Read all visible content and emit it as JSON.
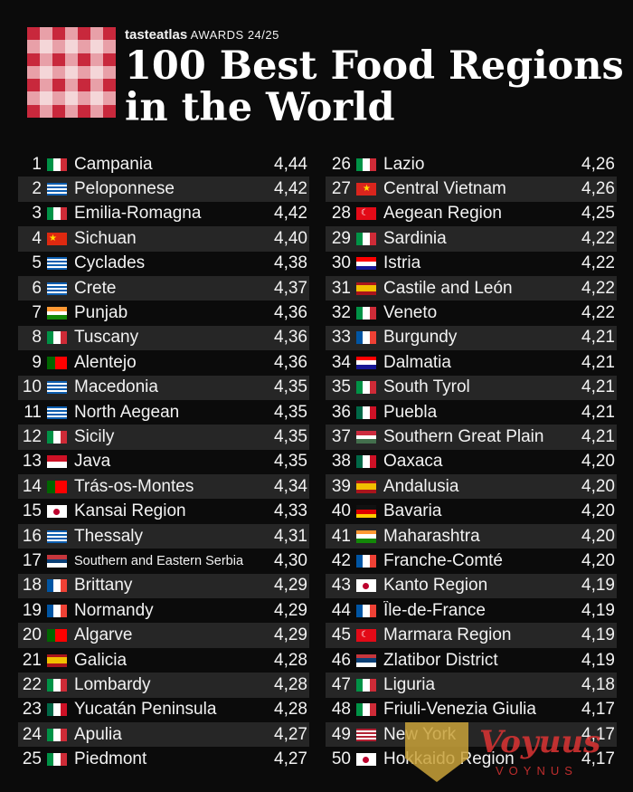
{
  "header": {
    "brand": "tasteatlas",
    "awards": "AWARDS 24/25",
    "title_line1": "100 Best Food Regions",
    "title_line2": "in the World"
  },
  "colors": {
    "checker_red": "#c8283c",
    "checker_pink": "#e8a0a8",
    "checker_light": "#f4d6d8",
    "row_alt": "#262626",
    "background": "#0b0b0b"
  },
  "left": [
    {
      "rank": "1",
      "flag": "italy",
      "name": "Campania",
      "score": "4,44"
    },
    {
      "rank": "2",
      "flag": "greece",
      "name": "Peloponnese",
      "score": "4,42"
    },
    {
      "rank": "3",
      "flag": "italy",
      "name": "Emilia-Romagna",
      "score": "4,42"
    },
    {
      "rank": "4",
      "flag": "china",
      "name": "Sichuan",
      "score": "4,40"
    },
    {
      "rank": "5",
      "flag": "greece",
      "name": "Cyclades",
      "score": "4,38"
    },
    {
      "rank": "6",
      "flag": "greece",
      "name": "Crete",
      "score": "4,37"
    },
    {
      "rank": "7",
      "flag": "india",
      "name": "Punjab",
      "score": "4,36"
    },
    {
      "rank": "8",
      "flag": "italy",
      "name": "Tuscany",
      "score": "4,36"
    },
    {
      "rank": "9",
      "flag": "portugal",
      "name": "Alentejo",
      "score": "4,36"
    },
    {
      "rank": "10",
      "flag": "greece",
      "name": "Macedonia",
      "score": "4,35"
    },
    {
      "rank": "11",
      "flag": "greece",
      "name": "North Aegean",
      "score": "4,35"
    },
    {
      "rank": "12",
      "flag": "italy",
      "name": "Sicily",
      "score": "4,35"
    },
    {
      "rank": "13",
      "flag": "indonesia",
      "name": "Java",
      "score": "4,35"
    },
    {
      "rank": "14",
      "flag": "portugal",
      "name": "Trás-os-Montes",
      "score": "4,34"
    },
    {
      "rank": "15",
      "flag": "japan",
      "name": "Kansai Region",
      "score": "4,33"
    },
    {
      "rank": "16",
      "flag": "greece",
      "name": "Thessaly",
      "score": "4,31"
    },
    {
      "rank": "17",
      "flag": "serbia",
      "name": "Southern and Eastern Serbia",
      "score": "4,30"
    },
    {
      "rank": "18",
      "flag": "france",
      "name": "Brittany",
      "score": "4,29"
    },
    {
      "rank": "19",
      "flag": "france",
      "name": "Normandy",
      "score": "4,29"
    },
    {
      "rank": "20",
      "flag": "portugal",
      "name": "Algarve",
      "score": "4,29"
    },
    {
      "rank": "21",
      "flag": "spain",
      "name": "Galicia",
      "score": "4,28"
    },
    {
      "rank": "22",
      "flag": "italy",
      "name": "Lombardy",
      "score": "4,28"
    },
    {
      "rank": "23",
      "flag": "mexico",
      "name": "Yucatán Peninsula",
      "score": "4,28"
    },
    {
      "rank": "24",
      "flag": "italy",
      "name": "Apulia",
      "score": "4,27"
    },
    {
      "rank": "25",
      "flag": "italy",
      "name": "Piedmont",
      "score": "4,27"
    }
  ],
  "right": [
    {
      "rank": "26",
      "flag": "italy",
      "name": "Lazio",
      "score": "4,26"
    },
    {
      "rank": "27",
      "flag": "vietnam",
      "name": "Central Vietnam",
      "score": "4,26"
    },
    {
      "rank": "28",
      "flag": "turkey",
      "name": "Aegean Region",
      "score": "4,25"
    },
    {
      "rank": "29",
      "flag": "italy",
      "name": "Sardinia",
      "score": "4,22"
    },
    {
      "rank": "30",
      "flag": "croatia",
      "name": "Istria",
      "score": "4,22"
    },
    {
      "rank": "31",
      "flag": "spain",
      "name": "Castile and León",
      "score": "4,22"
    },
    {
      "rank": "32",
      "flag": "italy",
      "name": "Veneto",
      "score": "4,22"
    },
    {
      "rank": "33",
      "flag": "france",
      "name": "Burgundy",
      "score": "4,21"
    },
    {
      "rank": "34",
      "flag": "croatia",
      "name": "Dalmatia",
      "score": "4,21"
    },
    {
      "rank": "35",
      "flag": "italy",
      "name": "South Tyrol",
      "score": "4,21"
    },
    {
      "rank": "36",
      "flag": "mexico",
      "name": "Puebla",
      "score": "4,21"
    },
    {
      "rank": "37",
      "flag": "hungary",
      "name": "Southern Great Plain",
      "score": "4,21"
    },
    {
      "rank": "38",
      "flag": "mexico",
      "name": "Oaxaca",
      "score": "4,20"
    },
    {
      "rank": "39",
      "flag": "spain",
      "name": "Andalusia",
      "score": "4,20"
    },
    {
      "rank": "40",
      "flag": "germany",
      "name": "Bavaria",
      "score": "4,20"
    },
    {
      "rank": "41",
      "flag": "india",
      "name": "Maharashtra",
      "score": "4,20"
    },
    {
      "rank": "42",
      "flag": "france",
      "name": "Franche-Comté",
      "score": "4,20"
    },
    {
      "rank": "43",
      "flag": "japan",
      "name": "Kanto Region",
      "score": "4,19"
    },
    {
      "rank": "44",
      "flag": "france",
      "name": "Île-de-France",
      "score": "4,19"
    },
    {
      "rank": "45",
      "flag": "turkey",
      "name": "Marmara Region",
      "score": "4,19"
    },
    {
      "rank": "46",
      "flag": "serbia",
      "name": "Zlatibor District",
      "score": "4,19"
    },
    {
      "rank": "47",
      "flag": "italy",
      "name": "Liguria",
      "score": "4,18"
    },
    {
      "rank": "48",
      "flag": "italy",
      "name": "Friuli-Venezia Giulia",
      "score": "4,17"
    },
    {
      "rank": "49",
      "flag": "usa",
      "name": "New York",
      "score": "4,17"
    },
    {
      "rank": "50",
      "flag": "japan",
      "name": "Hokkaido Region",
      "score": "4,17"
    }
  ],
  "watermark": {
    "text": "Voyuus",
    "sub": "VOYNUS"
  }
}
